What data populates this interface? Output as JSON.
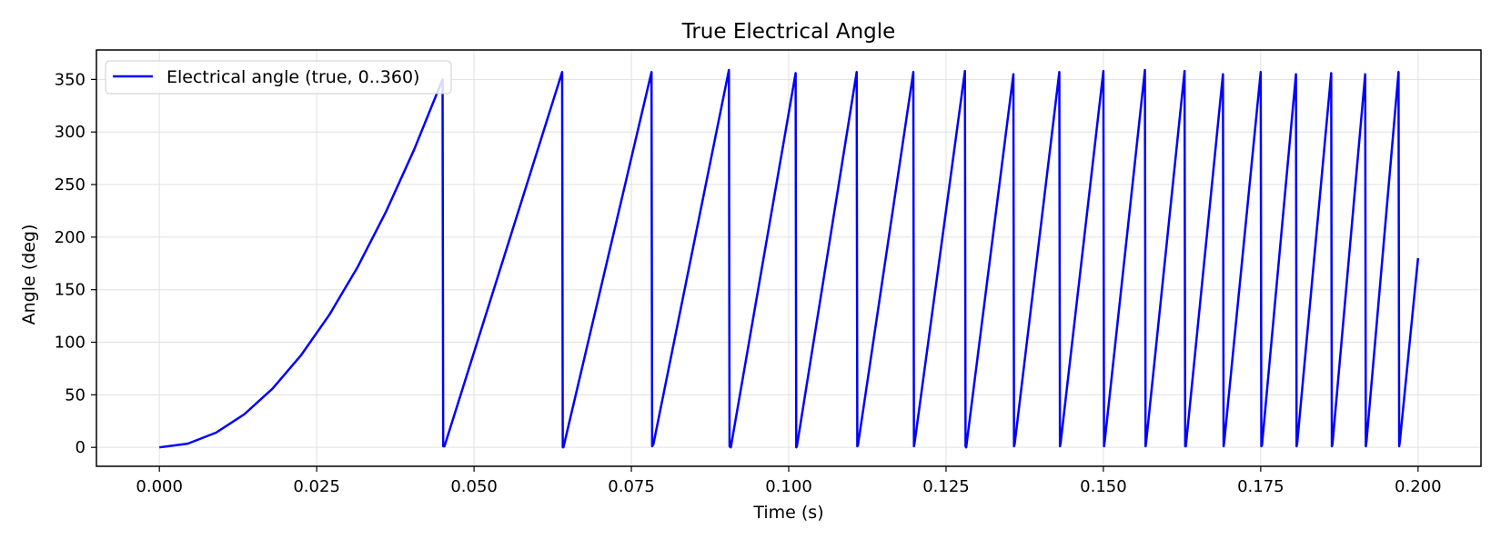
{
  "chart_data": {
    "type": "line",
    "title": "True Electrical Angle",
    "xlabel": "Time (s)",
    "ylabel": "Angle (deg)",
    "xlim": [
      -0.01,
      0.21
    ],
    "ylim": [
      -18,
      378
    ],
    "x_ticks": [
      0.0,
      0.025,
      0.05,
      0.075,
      0.1,
      0.125,
      0.15,
      0.175,
      0.2
    ],
    "x_tick_labels": [
      "0.000",
      "0.025",
      "0.050",
      "0.075",
      "0.100",
      "0.125",
      "0.150",
      "0.175",
      "0.200"
    ],
    "y_ticks": [
      0,
      50,
      100,
      150,
      200,
      250,
      300,
      350
    ],
    "y_tick_labels": [
      "0",
      "50",
      "100",
      "150",
      "200",
      "250",
      "300",
      "350"
    ],
    "grid": true,
    "legend_position": "top-left",
    "series": [
      {
        "name": "Electrical angle (true, 0..360)",
        "color": "#0000ff",
        "note_shape": "quadratic ramp from 0 to first wrap, then linear sawtooth ramps",
        "x": [
          0.0,
          0.0045,
          0.009,
          0.0135,
          0.018,
          0.0225,
          0.027,
          0.0315,
          0.036,
          0.0405,
          0.045,
          0.0451,
          0.0453,
          0.064,
          0.0641,
          0.0642,
          0.0782,
          0.0783,
          0.0785,
          0.0905,
          0.0906,
          0.0908,
          0.1011,
          0.1012,
          0.1013,
          0.1108,
          0.1109,
          0.111,
          0.1198,
          0.1199,
          0.12,
          0.128,
          0.1281,
          0.1282,
          0.1357,
          0.1358,
          0.1359,
          0.143,
          0.1431,
          0.1432,
          0.15,
          0.1501,
          0.1502,
          0.1566,
          0.1567,
          0.1568,
          0.1629,
          0.163,
          0.1631,
          0.169,
          0.1691,
          0.1692,
          0.175,
          0.1751,
          0.1752,
          0.1806,
          0.1807,
          0.1808,
          0.1862,
          0.1863,
          0.1864,
          0.1916,
          0.1917,
          0.1918,
          0.1969,
          0.197,
          0.1971,
          0.2
        ],
        "y": [
          0,
          3.5,
          14,
          31.5,
          56,
          87.5,
          126,
          171.5,
          224,
          283.5,
          350,
          1,
          1,
          357,
          0,
          0,
          357,
          1,
          3,
          359,
          1,
          0,
          356,
          0,
          1,
          357,
          1,
          2,
          357,
          1,
          4,
          358,
          1,
          0,
          355,
          1,
          3,
          357,
          1,
          4,
          358,
          1,
          5,
          359,
          1,
          5,
          358,
          1,
          1,
          355,
          1,
          5,
          357,
          1,
          2,
          355,
          1,
          4,
          356,
          1,
          3,
          355,
          1,
          5,
          357,
          1,
          5,
          180
        ]
      }
    ]
  }
}
